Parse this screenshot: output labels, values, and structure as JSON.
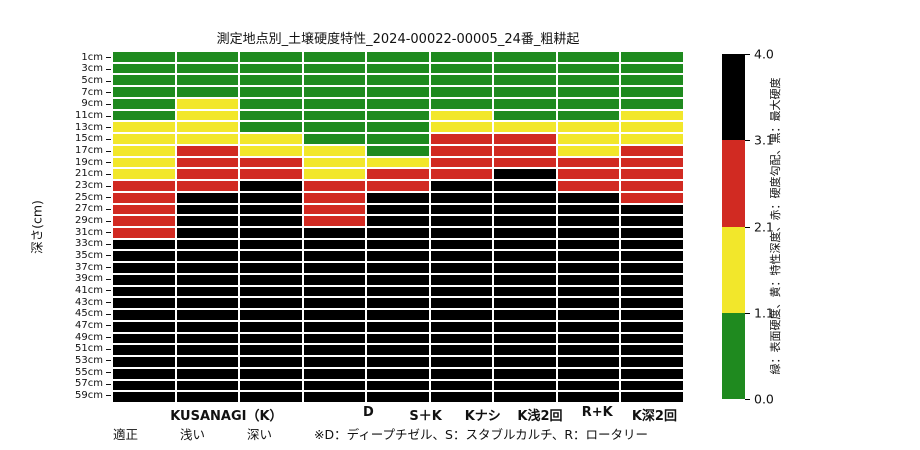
{
  "chart_data": {
    "type": "heatmap",
    "title": "測定地点別_土壌硬度特性_2024-00022-00005_24番_粗耕起",
    "ylabel": "深さ(cm)",
    "rows": [
      "1cm",
      "3cm",
      "5cm",
      "7cm",
      "9cm",
      "11cm",
      "13cm",
      "15cm",
      "17cm",
      "19cm",
      "21cm",
      "23cm",
      "25cm",
      "27cm",
      "29cm",
      "31cm",
      "33cm",
      "35cm",
      "37cm",
      "39cm",
      "41cm",
      "43cm",
      "45cm",
      "47cm",
      "49cm",
      "51cm",
      "53cm",
      "55cm",
      "57cm",
      "59cm"
    ],
    "depth_range_cm": [
      1,
      59
    ],
    "grid": "white 2px separators between cells",
    "columns": [
      {
        "label": "",
        "green_through_cm": 11,
        "yellow_through_cm": 21,
        "red_through_cm": 31
      },
      {
        "label": "KUSANAGI（K）",
        "green_through_cm": 7,
        "yellow_through_cm": 15,
        "red_through_cm": 23
      },
      {
        "label": "",
        "green_through_cm": 13,
        "yellow_through_cm": 17,
        "red_through_cm": 21
      },
      {
        "label": "D",
        "green_through_cm": 15,
        "yellow_through_cm": 21,
        "red_through_cm": 29
      },
      {
        "label": "S＋K",
        "green_through_cm": 17,
        "yellow_through_cm": 19,
        "red_through_cm": 23
      },
      {
        "label": "Kナシ",
        "green_through_cm": 9,
        "yellow_through_cm": 13,
        "red_through_cm": 21
      },
      {
        "label": "K浅2回",
        "green_through_cm": 11,
        "yellow_through_cm": 13,
        "red_through_cm": 19
      },
      {
        "label": "R+K",
        "green_through_cm": 11,
        "yellow_through_cm": 17,
        "red_through_cm": 23
      },
      {
        "label": "K深2回",
        "green_through_cm": 9,
        "yellow_through_cm": 15,
        "red_through_cm": 25
      }
    ],
    "palette": {
      "green": "#1f8a1f",
      "yellow": "#f2e72b",
      "red": "#d12a22",
      "black": "#000000"
    },
    "colorbar": {
      "ticks": [
        "4.0",
        "3.1",
        "2.1",
        "1.1",
        "0.0"
      ],
      "segments_top_to_bottom": [
        "black",
        "red",
        "yellow",
        "green"
      ],
      "label": "緑：表面硬度、黄：特性深度、赤：硬度勾配、黒：最大硬度"
    },
    "footnotes": {
      "legend_items": [
        "適正",
        "浅い",
        "深い"
      ],
      "note": "※D：ディープチゼル、S：スタブルカルチ、R：ロータリー"
    }
  }
}
